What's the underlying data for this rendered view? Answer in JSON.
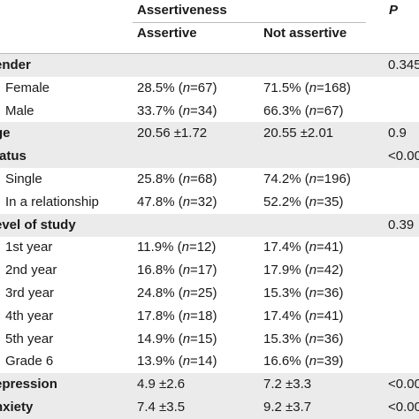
{
  "header": {
    "group_label": "Assertiveness",
    "p_label": "P",
    "col1": "Assertive",
    "col2": "Not assertive"
  },
  "rows": [
    {
      "label": "ender",
      "bold": true,
      "c1": "",
      "c2": "",
      "p": "0.345"
    },
    {
      "label": "Female",
      "bold": false,
      "c1": "28.5% (n=67)",
      "c2": "71.5% (n=168)",
      "p": ""
    },
    {
      "label": "Male",
      "bold": false,
      "c1": "33.7% (n=34)",
      "c2": "66.3% (n=67)",
      "p": ""
    },
    {
      "label": "ge",
      "bold": true,
      "c1": "20.56 ±1.72",
      "c2": "20.55 ±2.01",
      "p": "0.9"
    },
    {
      "label": "tatus",
      "bold": true,
      "c1": "",
      "c2": "",
      "p": "<0.00"
    },
    {
      "label": "Single",
      "bold": false,
      "c1": "25.8% (n=68)",
      "c2": "74.2% (n=196)",
      "p": ""
    },
    {
      "label": "In a relationship",
      "bold": false,
      "c1": "47.8% (n=32)",
      "c2": "52.2% (n=35)",
      "p": ""
    },
    {
      "label": "evel of study",
      "bold": true,
      "c1": "",
      "c2": "",
      "p": "0.39"
    },
    {
      "label": "1st year",
      "bold": false,
      "c1": "11.9% (n=12)",
      "c2": "17.4% (n=41)",
      "p": ""
    },
    {
      "label": "2nd year",
      "bold": false,
      "c1": "16.8% (n=17)",
      "c2": "17.9% (n=42)",
      "p": ""
    },
    {
      "label": "3rd year",
      "bold": false,
      "c1": "24.8% (n=25)",
      "c2": "15.3% (n=36)",
      "p": ""
    },
    {
      "label": "4th year",
      "bold": false,
      "c1": "17.8% (n=18)",
      "c2": "17.4% (n=41)",
      "p": ""
    },
    {
      "label": "5th year",
      "bold": false,
      "c1": "14.9% (n=15)",
      "c2": "15.3% (n=36)",
      "p": ""
    },
    {
      "label": "Grade 6",
      "bold": false,
      "c1": "13.9% (n=14)",
      "c2": "16.6% (n=39)",
      "p": ""
    },
    {
      "label": "epression",
      "bold": true,
      "c1": "4.9 ±2.6",
      "c2": "7.2 ±3.3",
      "p": "<0.00"
    },
    {
      "label": "nxiety",
      "bold": true,
      "c1": "7.4 ±3.5",
      "c2": "9.2 ±3.7",
      "p": "<0.00"
    }
  ]
}
